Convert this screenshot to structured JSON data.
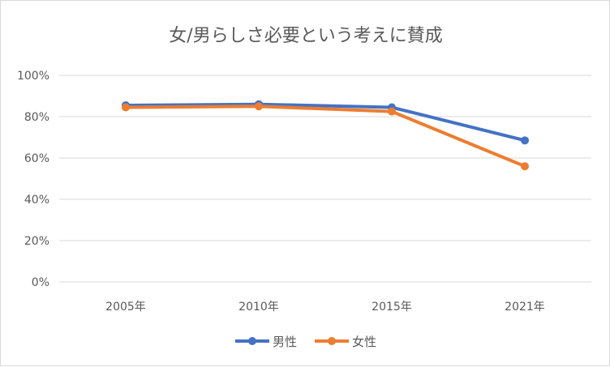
{
  "chart_data": {
    "type": "line",
    "title": "女/男らしさ必要という考えに賛成",
    "xlabel": "",
    "ylabel": "",
    "categories": [
      "2005年",
      "2010年",
      "2015年",
      "2021年"
    ],
    "ylim": [
      0,
      100
    ],
    "yticks": [
      "0%",
      "20%",
      "40%",
      "60%",
      "80%",
      "100%"
    ],
    "grid": true,
    "legend_position": "bottom",
    "series": [
      {
        "name": "男性",
        "color": "#4472C4",
        "values": [
          85.5,
          86,
          84.5,
          68.5
        ]
      },
      {
        "name": "女性",
        "color": "#ED7D31",
        "values": [
          84.5,
          85,
          82.5,
          56
        ]
      }
    ]
  }
}
